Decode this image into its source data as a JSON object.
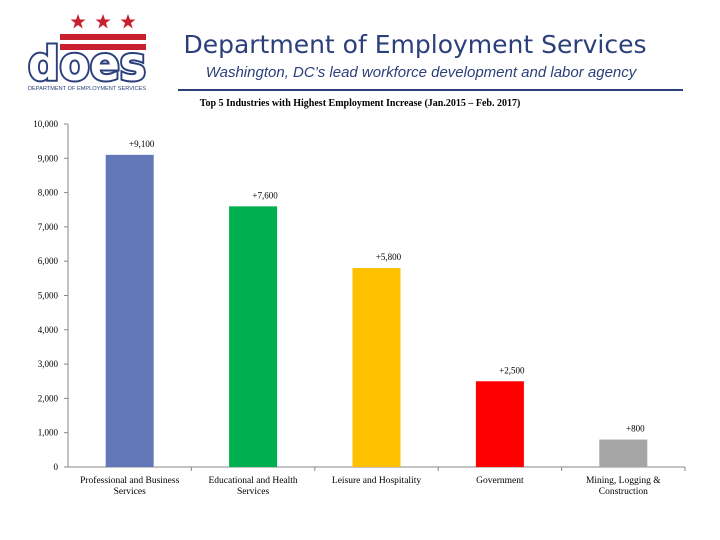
{
  "header": {
    "logo_text": "does",
    "logo_caption": "DEPARTMENT OF EMPLOYMENT SERVICES",
    "title": "Department of Employment Services",
    "subtitle": "Washington, DC’s lead workforce development and labor agency"
  },
  "colors": {
    "brand_blue": "#2b3f7a",
    "star_red": "#c8202f"
  },
  "chart_data": {
    "type": "bar",
    "title": "Top 5 Industries with Highest Employment Increase (Jan.2015 – Feb. 2017)",
    "categories": [
      [
        "Professional and Business",
        "Services"
      ],
      [
        "Educational and Health",
        "Services"
      ],
      [
        "Leisure and Hospitality"
      ],
      [
        "Government"
      ],
      [
        "Mining, Logging &",
        "Construction"
      ]
    ],
    "values": [
      9100,
      7600,
      5800,
      2500,
      800
    ],
    "data_labels": [
      "+9,100",
      "+7,600",
      "+5,800",
      "+2,500",
      "+800"
    ],
    "bar_colors": [
      "#6278b8",
      "#00b050",
      "#ffc000",
      "#ff0000",
      "#a6a6a6"
    ],
    "ylim": [
      0,
      10000
    ],
    "yticks": [
      0,
      1000,
      2000,
      3000,
      4000,
      5000,
      6000,
      7000,
      8000,
      9000,
      10000
    ],
    "ytick_labels": [
      "0",
      "1,000",
      "2,000",
      "3,000",
      "4,000",
      "5,000",
      "6,000",
      "7,000",
      "8,000",
      "9,000",
      "10,000"
    ],
    "grid": false,
    "legend": "none"
  }
}
